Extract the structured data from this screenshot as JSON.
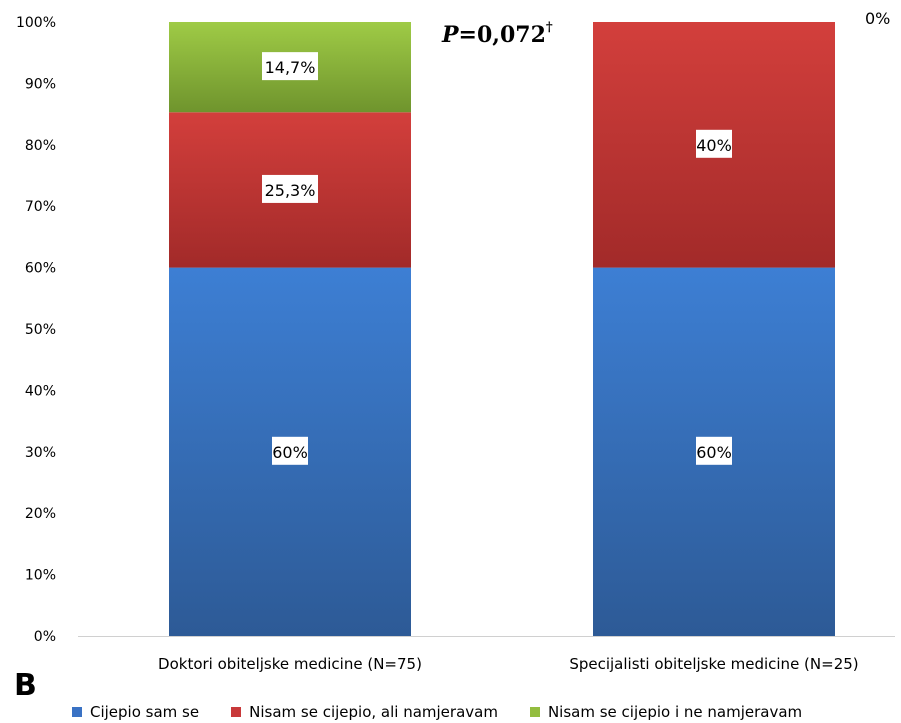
{
  "panel_letter": "B",
  "p_value": {
    "prefix": "P",
    "value": "=0,072",
    "mark": "†"
  },
  "chart_data": {
    "type": "bar",
    "stacked": true,
    "normalized": true,
    "categories": [
      "Doktori obiteljske medicine (N=75)",
      "Specijalisti obiteljske medicine (N=25)"
    ],
    "series": [
      {
        "name": "Cijepio sam se",
        "color": "#3a72c4",
        "values": [
          60,
          60
        ],
        "labels": [
          "60%",
          "60%"
        ]
      },
      {
        "name": "Nisam se cijepio, ali namjeravam",
        "color": "#c8393a",
        "values": [
          25.3,
          40
        ],
        "labels": [
          "25,3%",
          "40%"
        ]
      },
      {
        "name": "Nisam se cijepio i ne namjeravam",
        "color": "#93bd3f",
        "values": [
          14.7,
          0
        ],
        "labels": [
          "14,7%",
          "0%"
        ]
      }
    ],
    "yticks": [
      "0%",
      "10%",
      "20%",
      "30%",
      "40%",
      "50%",
      "60%",
      "70%",
      "80%",
      "90%",
      "100%"
    ],
    "ylim": [
      0,
      100
    ],
    "grid": false,
    "legend_position": "bottom"
  }
}
